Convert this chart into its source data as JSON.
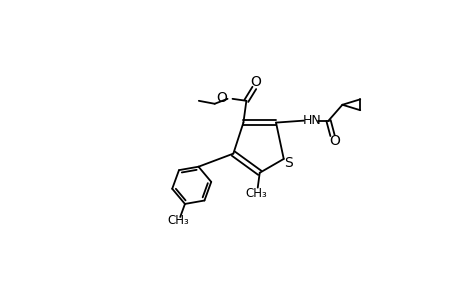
{
  "background_color": "#ffffff",
  "line_color": "#000000",
  "line_width": 1.3,
  "font_size": 9,
  "figsize": [
    4.6,
    3.0
  ],
  "dpi": 100,
  "xlim": [
    0,
    46
  ],
  "ylim": [
    0,
    30
  ]
}
